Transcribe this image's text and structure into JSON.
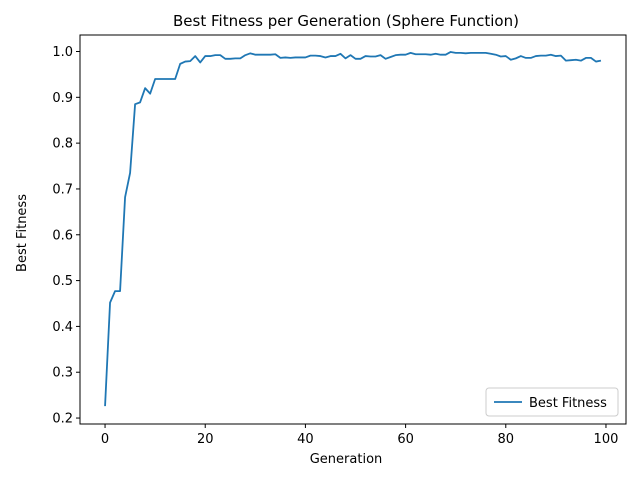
{
  "chart_data": {
    "type": "line",
    "title": "Best Fitness per Generation (Sphere Function)",
    "xlabel": "Generation",
    "ylabel": "Best Fitness",
    "xlim": [
      -5,
      104
    ],
    "ylim": [
      0.187,
      1.036
    ],
    "xticks": [
      0,
      20,
      40,
      60,
      80,
      100
    ],
    "yticks": [
      0.2,
      0.3,
      0.4,
      0.5,
      0.6,
      0.7,
      0.8,
      0.9,
      1.0
    ],
    "ytick_labels": [
      "0.2",
      "0.3",
      "0.4",
      "0.5",
      "0.6",
      "0.7",
      "0.8",
      "0.9",
      "1.0"
    ],
    "grid": false,
    "legend": {
      "position": "lower-right",
      "entries": [
        "Best Fitness"
      ]
    },
    "series": [
      {
        "name": "Best Fitness",
        "color": "#1f77b4",
        "x": [
          0,
          1,
          2,
          3,
          4,
          5,
          6,
          7,
          8,
          9,
          10,
          11,
          12,
          13,
          14,
          15,
          16,
          17,
          18,
          19,
          20,
          21,
          22,
          23,
          24,
          25,
          26,
          27,
          28,
          29,
          30,
          31,
          32,
          33,
          34,
          35,
          36,
          37,
          38,
          39,
          40,
          41,
          42,
          43,
          44,
          45,
          46,
          47,
          48,
          49,
          50,
          51,
          52,
          53,
          54,
          55,
          56,
          57,
          58,
          59,
          60,
          61,
          62,
          63,
          64,
          65,
          66,
          67,
          68,
          69,
          70,
          71,
          72,
          73,
          74,
          75,
          76,
          77,
          78,
          79,
          80,
          81,
          82,
          83,
          84,
          85,
          86,
          87,
          88,
          89,
          90,
          91,
          92,
          93,
          94,
          95,
          96,
          97,
          98,
          99
        ],
        "values": [
          0.226,
          0.452,
          0.477,
          0.477,
          0.682,
          0.735,
          0.885,
          0.889,
          0.92,
          0.908,
          0.94,
          0.94,
          0.94,
          0.94,
          0.94,
          0.973,
          0.978,
          0.979,
          0.99,
          0.976,
          0.99,
          0.99,
          0.992,
          0.992,
          0.984,
          0.984,
          0.985,
          0.985,
          0.992,
          0.996,
          0.993,
          0.993,
          0.993,
          0.993,
          0.994,
          0.986,
          0.987,
          0.986,
          0.987,
          0.987,
          0.987,
          0.991,
          0.991,
          0.99,
          0.987,
          0.99,
          0.99,
          0.995,
          0.985,
          0.992,
          0.984,
          0.984,
          0.99,
          0.989,
          0.989,
          0.992,
          0.984,
          0.988,
          0.992,
          0.993,
          0.993,
          0.997,
          0.994,
          0.994,
          0.994,
          0.993,
          0.995,
          0.993,
          0.993,
          0.999,
          0.997,
          0.997,
          0.996,
          0.997,
          0.997,
          0.997,
          0.997,
          0.995,
          0.993,
          0.989,
          0.99,
          0.982,
          0.985,
          0.99,
          0.986,
          0.986,
          0.99,
          0.991,
          0.991,
          0.993,
          0.99,
          0.991,
          0.98,
          0.981,
          0.982,
          0.98,
          0.986,
          0.986,
          0.978,
          0.98
        ]
      }
    ]
  }
}
